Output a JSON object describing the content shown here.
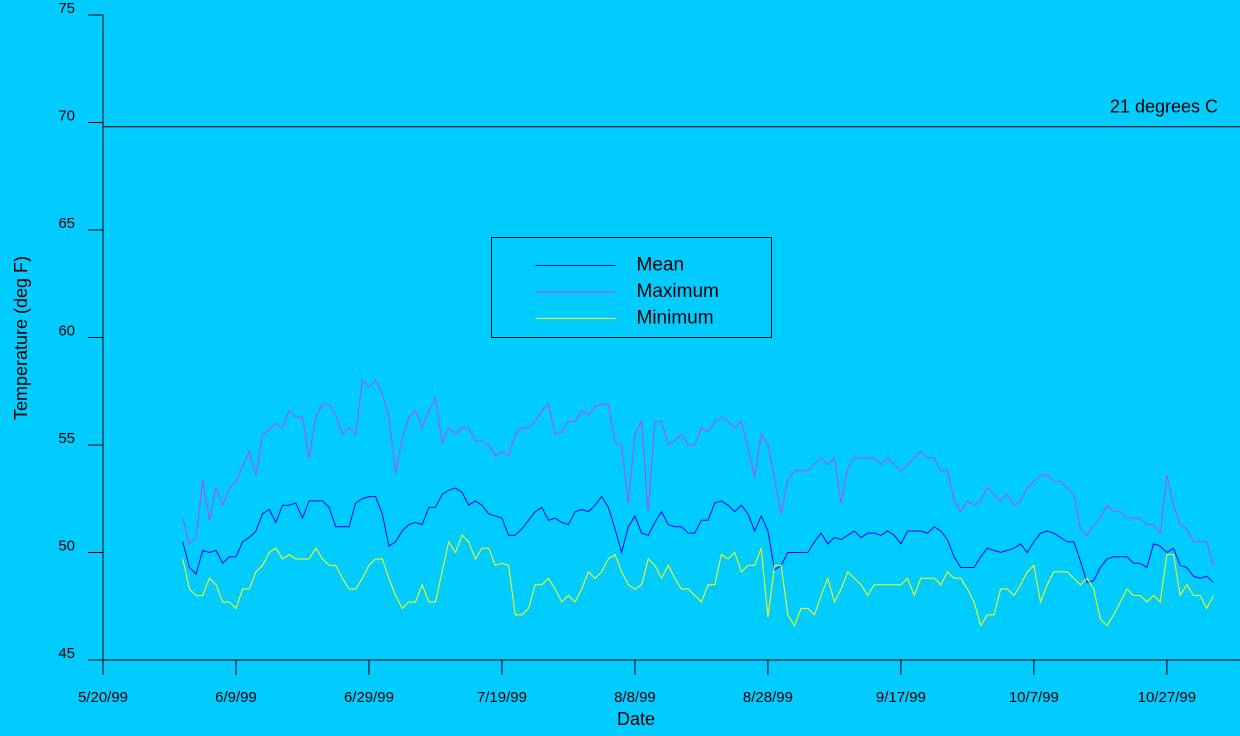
{
  "chart_data": {
    "type": "line",
    "x_label": "Date",
    "y_label": "Temperature (deg F)",
    "xlim": [
      "1999-05-20",
      "1999-11-07"
    ],
    "xticks": [
      {
        "value": "1999-05-20",
        "label": "5/20/99"
      },
      {
        "value": "1999-06-09",
        "label": "6/9/99"
      },
      {
        "value": "1999-06-29",
        "label": "6/29/99"
      },
      {
        "value": "1999-07-19",
        "label": "7/19/99"
      },
      {
        "value": "1999-08-08",
        "label": "8/8/99"
      },
      {
        "value": "1999-08-28",
        "label": "8/28/99"
      },
      {
        "value": "1999-09-17",
        "label": "9/17/99"
      },
      {
        "value": "1999-10-07",
        "label": "10/7/99"
      },
      {
        "value": "1999-10-27",
        "label": "10/27/99"
      }
    ],
    "ylim": [
      45,
      75
    ],
    "yticks": [
      45,
      50,
      55,
      60,
      65,
      70,
      75
    ],
    "grid": false,
    "legend_position": "center",
    "reference_line": {
      "value": 69.8,
      "label": "21 degrees C",
      "color": "#000000"
    },
    "x": [
      "1999-06-01",
      "1999-06-02",
      "1999-06-03",
      "1999-06-04",
      "1999-06-05",
      "1999-06-06",
      "1999-06-07",
      "1999-06-08",
      "1999-06-09",
      "1999-06-10",
      "1999-06-11",
      "1999-06-12",
      "1999-06-13",
      "1999-06-14",
      "1999-06-15",
      "1999-06-16",
      "1999-06-17",
      "1999-06-18",
      "1999-06-19",
      "1999-06-20",
      "1999-06-21",
      "1999-06-22",
      "1999-06-23",
      "1999-06-24",
      "1999-06-25",
      "1999-06-26",
      "1999-06-27",
      "1999-06-28",
      "1999-06-29",
      "1999-06-30",
      "1999-07-01",
      "1999-07-02",
      "1999-07-03",
      "1999-07-04",
      "1999-07-05",
      "1999-07-06",
      "1999-07-07",
      "1999-07-08",
      "1999-07-09",
      "1999-07-10",
      "1999-07-11",
      "1999-07-12",
      "1999-07-13",
      "1999-07-14",
      "1999-07-15",
      "1999-07-16",
      "1999-07-17",
      "1999-07-18",
      "1999-07-19",
      "1999-07-20",
      "1999-07-21",
      "1999-07-22",
      "1999-07-23",
      "1999-07-24",
      "1999-07-25",
      "1999-07-26",
      "1999-07-27",
      "1999-07-28",
      "1999-07-29",
      "1999-07-30",
      "1999-07-31",
      "1999-08-01",
      "1999-08-02",
      "1999-08-03",
      "1999-08-04",
      "1999-08-05",
      "1999-08-06",
      "1999-08-07",
      "1999-08-08",
      "1999-08-09",
      "1999-08-10",
      "1999-08-11",
      "1999-08-12",
      "1999-08-13",
      "1999-08-14",
      "1999-08-15",
      "1999-08-16",
      "1999-08-17",
      "1999-08-18",
      "1999-08-19",
      "1999-08-20",
      "1999-08-21",
      "1999-08-22",
      "1999-08-23",
      "1999-08-24",
      "1999-08-25",
      "1999-08-26",
      "1999-08-27",
      "1999-08-28",
      "1999-08-29",
      "1999-08-30",
      "1999-08-31",
      "1999-09-01",
      "1999-09-02",
      "1999-09-03",
      "1999-09-04",
      "1999-09-05",
      "1999-09-06",
      "1999-09-07",
      "1999-09-08",
      "1999-09-09",
      "1999-09-10",
      "1999-09-11",
      "1999-09-12",
      "1999-09-13",
      "1999-09-14",
      "1999-09-15",
      "1999-09-16",
      "1999-09-17",
      "1999-09-18",
      "1999-09-19",
      "1999-09-20",
      "1999-09-21",
      "1999-09-22",
      "1999-09-23",
      "1999-09-24",
      "1999-09-25",
      "1999-09-26",
      "1999-09-27",
      "1999-09-28",
      "1999-09-29",
      "1999-09-30",
      "1999-10-01",
      "1999-10-02",
      "1999-10-03",
      "1999-10-04",
      "1999-10-05",
      "1999-10-06",
      "1999-10-07",
      "1999-10-08",
      "1999-10-09",
      "1999-10-10",
      "1999-10-11",
      "1999-10-12",
      "1999-10-13",
      "1999-10-14",
      "1999-10-15",
      "1999-10-16",
      "1999-10-17",
      "1999-10-18",
      "1999-10-19",
      "1999-10-20",
      "1999-10-21",
      "1999-10-22",
      "1999-10-23",
      "1999-10-24",
      "1999-10-25",
      "1999-10-26",
      "1999-10-27",
      "1999-10-28",
      "1999-10-29",
      "1999-10-30",
      "1999-10-31",
      "1999-11-01",
      "1999-11-02",
      "1999-11-03"
    ],
    "series": [
      {
        "name": "Mean",
        "color": "#0000ff",
        "values": [
          50.5,
          49.3,
          49.0,
          50.1,
          50.0,
          50.1,
          49.5,
          49.8,
          49.8,
          50.5,
          50.7,
          51.0,
          51.8,
          52.0,
          51.4,
          52.2,
          52.2,
          52.3,
          51.6,
          52.4,
          52.4,
          52.4,
          52.1,
          51.2,
          51.2,
          51.2,
          52.3,
          52.5,
          52.6,
          52.6,
          51.8,
          50.3,
          50.5,
          51.0,
          51.3,
          51.4,
          51.3,
          52.1,
          52.1,
          52.7,
          52.9,
          53.0,
          52.8,
          52.2,
          52.4,
          52.2,
          51.8,
          51.7,
          51.6,
          50.8,
          50.8,
          51.1,
          51.5,
          51.9,
          52.1,
          51.5,
          51.6,
          51.4,
          51.3,
          51.9,
          52.0,
          51.9,
          52.2,
          52.6,
          52.1,
          51.1,
          50.0,
          51.2,
          51.7,
          50.9,
          50.8,
          51.4,
          51.9,
          51.3,
          51.2,
          51.2,
          50.9,
          50.9,
          51.5,
          51.5,
          52.3,
          52.4,
          52.2,
          51.9,
          52.2,
          51.8,
          51.0,
          51.7,
          51.0,
          49.2,
          49.4,
          50.0,
          50.0,
          50.0,
          50.0,
          50.5,
          50.9,
          50.4,
          50.7,
          50.6,
          50.8,
          51.0,
          50.7,
          50.9,
          50.9,
          50.8,
          51.0,
          50.8,
          50.4,
          51.0,
          51.0,
          51.0,
          50.9,
          51.2,
          51.0,
          50.6,
          49.8,
          49.3,
          49.3,
          49.3,
          49.8,
          50.2,
          50.1,
          50.0,
          50.1,
          50.2,
          50.4,
          50.0,
          50.5,
          50.9,
          51.0,
          50.9,
          50.7,
          50.5,
          50.5,
          49.6,
          48.6,
          48.7,
          49.3,
          49.7,
          49.8,
          49.8,
          49.8,
          49.5,
          49.5,
          49.3,
          50.4,
          50.3,
          50.0,
          50.2,
          49.4,
          49.3,
          48.9,
          48.8,
          48.9,
          48.6
        ]
      },
      {
        "name": "Maximum",
        "color": "#bb44ff",
        "values": [
          51.6,
          50.4,
          50.7,
          53.4,
          51.5,
          53.0,
          52.2,
          53.0,
          53.3,
          54.0,
          54.7,
          53.6,
          55.5,
          55.7,
          56.0,
          55.8,
          56.6,
          56.3,
          56.3,
          54.4,
          56.3,
          56.9,
          56.9,
          56.4,
          55.5,
          55.8,
          55.5,
          58.0,
          57.7,
          58.0,
          57.4,
          56.3,
          53.7,
          55.3,
          56.3,
          56.6,
          55.8,
          56.6,
          57.2,
          55.1,
          55.8,
          55.5,
          55.8,
          55.8,
          55.2,
          55.2,
          55.0,
          54.5,
          54.7,
          54.5,
          55.5,
          55.8,
          55.8,
          56.1,
          56.6,
          56.9,
          55.5,
          55.6,
          56.1,
          56.1,
          56.6,
          56.4,
          56.8,
          56.9,
          56.9,
          55.1,
          55.0,
          52.3,
          55.5,
          56.1,
          51.9,
          56.1,
          56.1,
          55.0,
          55.2,
          55.5,
          55.0,
          55.0,
          55.8,
          55.6,
          56.1,
          56.3,
          56.1,
          55.8,
          56.1,
          54.9,
          53.5,
          55.5,
          55.0,
          53.4,
          51.8,
          53.4,
          53.8,
          53.8,
          53.8,
          54.1,
          54.4,
          54.1,
          54.4,
          52.3,
          53.9,
          54.4,
          54.4,
          54.4,
          54.4,
          54.1,
          54.4,
          54.1,
          53.8,
          54.1,
          54.4,
          54.7,
          54.4,
          54.4,
          53.8,
          53.8,
          52.4,
          51.9,
          52.4,
          52.2,
          52.4,
          53.0,
          52.7,
          52.4,
          52.7,
          52.2,
          52.4,
          53.0,
          53.3,
          53.6,
          53.6,
          53.3,
          53.3,
          53.0,
          52.7,
          51.1,
          50.8,
          51.3,
          51.6,
          52.2,
          51.9,
          51.9,
          51.6,
          51.6,
          51.6,
          51.3,
          51.3,
          50.9,
          53.6,
          52.2,
          51.3,
          51.1,
          50.5,
          50.5,
          50.5,
          49.4
        ]
      },
      {
        "name": "Minimum",
        "color": "#ffff00",
        "values": [
          49.7,
          48.3,
          48.0,
          48.0,
          48.8,
          48.5,
          47.7,
          47.7,
          47.4,
          48.3,
          48.3,
          49.1,
          49.4,
          50.0,
          50.2,
          49.7,
          49.9,
          49.7,
          49.7,
          49.7,
          50.2,
          49.7,
          49.4,
          49.4,
          48.8,
          48.3,
          48.3,
          48.8,
          49.4,
          49.7,
          49.7,
          48.8,
          48.0,
          47.4,
          47.7,
          47.7,
          48.5,
          47.7,
          47.7,
          49.1,
          50.5,
          50.0,
          50.8,
          50.5,
          49.7,
          50.2,
          50.2,
          49.4,
          49.5,
          49.4,
          47.1,
          47.1,
          47.4,
          48.5,
          48.5,
          48.8,
          48.3,
          47.7,
          48.0,
          47.7,
          48.3,
          49.1,
          48.8,
          49.1,
          49.7,
          49.9,
          49.1,
          48.5,
          48.3,
          48.5,
          49.7,
          49.4,
          48.8,
          49.4,
          48.8,
          48.3,
          48.3,
          48.0,
          47.7,
          48.5,
          48.5,
          49.9,
          49.7,
          50.0,
          49.1,
          49.4,
          49.4,
          50.2,
          47.0,
          49.4,
          49.4,
          47.1,
          46.6,
          47.4,
          47.4,
          47.1,
          48.0,
          48.8,
          47.7,
          48.3,
          49.1,
          48.8,
          48.5,
          48.0,
          48.5,
          48.5,
          48.5,
          48.5,
          48.5,
          48.8,
          48.0,
          48.8,
          48.8,
          48.8,
          48.5,
          49.1,
          48.8,
          48.8,
          48.3,
          47.7,
          46.6,
          47.1,
          47.1,
          48.3,
          48.3,
          48.0,
          48.5,
          49.1,
          49.4,
          47.7,
          48.5,
          49.1,
          49.1,
          49.1,
          48.8,
          48.5,
          48.8,
          48.3,
          46.9,
          46.6,
          47.1,
          47.7,
          48.3,
          48.0,
          48.0,
          47.7,
          48.0,
          47.7,
          49.9,
          49.9,
          48.0,
          48.5,
          48.0,
          48.0,
          47.4,
          48.0
        ]
      }
    ]
  }
}
